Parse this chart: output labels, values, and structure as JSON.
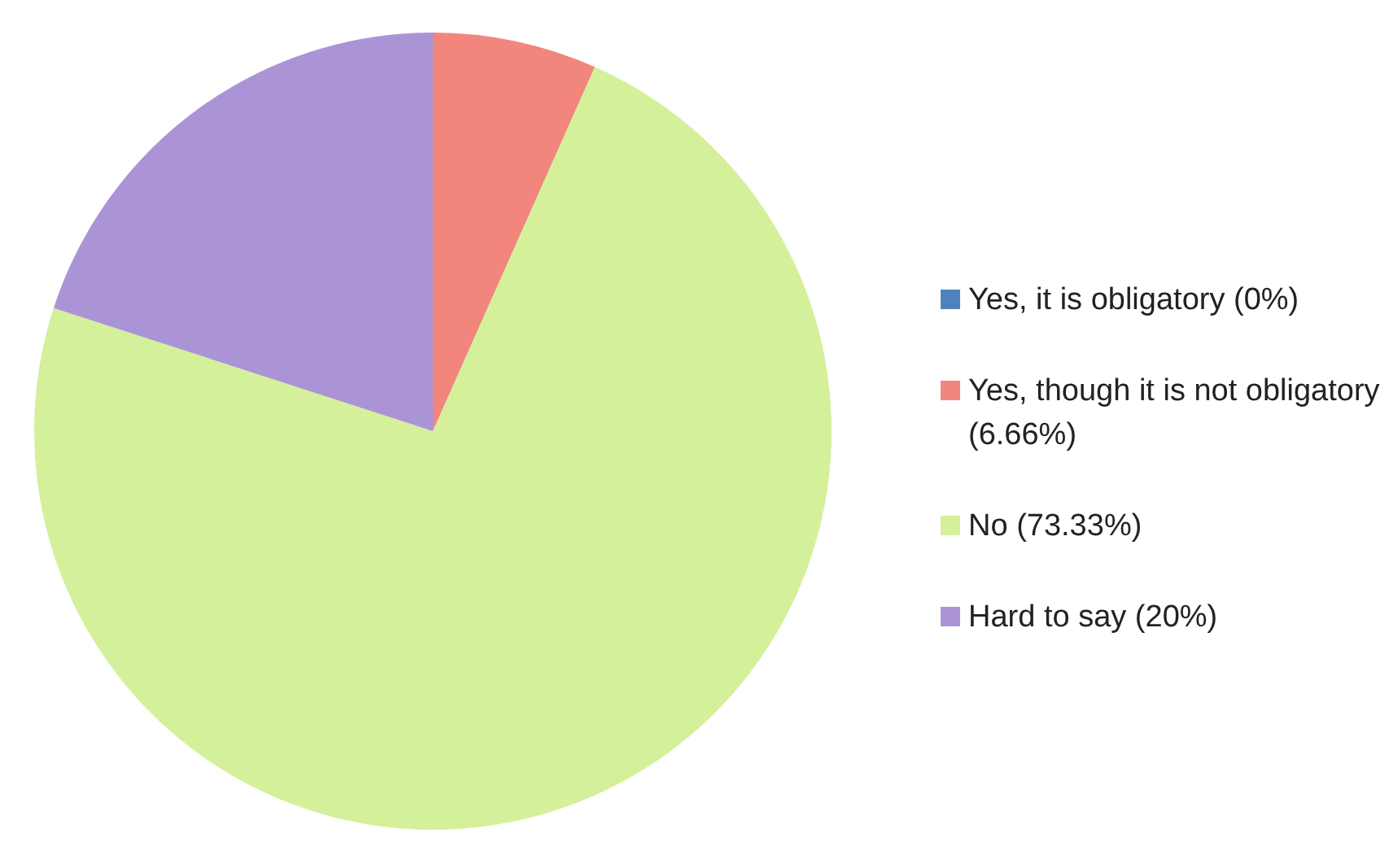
{
  "chart_data": {
    "type": "pie",
    "categories": [
      "Yes, it is obligatory (0%)",
      "Yes, though it is not obligatory (6.66%)",
      "No (73.33%)",
      "Hard to say (20%)"
    ],
    "values": [
      0,
      6.66,
      73.33,
      20
    ],
    "colors": [
      "#4f81bd",
      "#f2867c",
      "#d4f09a",
      "#ab94d6"
    ],
    "legend": "right"
  }
}
